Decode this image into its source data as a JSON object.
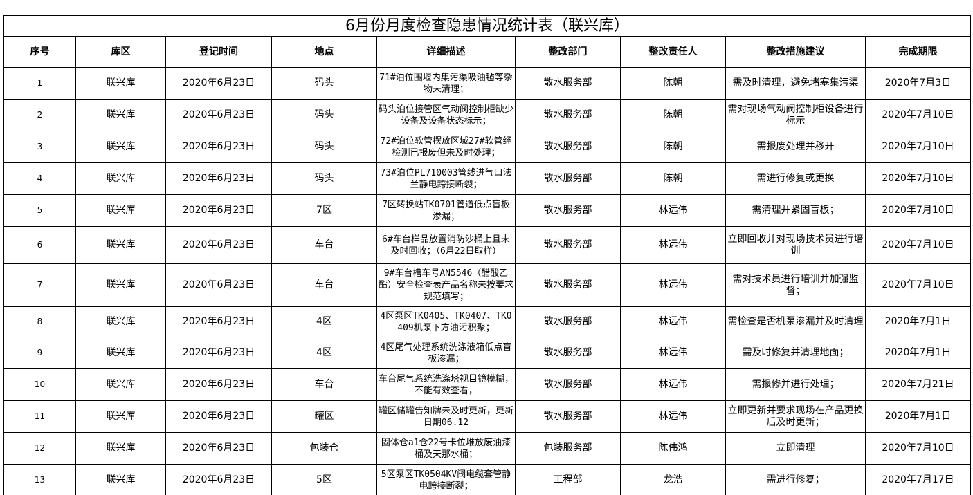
{
  "title": "6月份月度检查隐患情况统计表（联兴库）",
  "table": {
    "headers": [
      "序号",
      "库区",
      "登记时间",
      "地点",
      "详细描述",
      "整改部门",
      "整改责任人",
      "整改措施建议",
      "完成期限"
    ],
    "rows": [
      [
        "1",
        "联兴库",
        "2020年6月23日",
        "码头",
        "71#泊位围堰内集污渠吸油毡等杂物未清理；",
        "散水服务部",
        "陈朝",
        "需及时清理，避免堵塞集污渠",
        "2020年7月3日"
      ],
      [
        "2",
        "联兴库",
        "2020年6月23日",
        "码头",
        "码头泊位接管区气动阀控制柜缺少设备及设备状态标示；",
        "散水服务部",
        "陈朝",
        "需对现场气动阀控制柜设备进行标示",
        "2020年7月10日"
      ],
      [
        "3",
        "联兴库",
        "2020年6月23日",
        "码头",
        "72#泊位软管摆放区域27#软管经检测已报废但未及时处理；",
        "散水服务部",
        "陈朝",
        "需报废处理并移开",
        "2020年7月10日"
      ],
      [
        "4",
        "联兴库",
        "2020年6月23日",
        "码头",
        "73#泊位PL710003管线进气口法兰静电跨接断裂；",
        "散水服务部",
        "陈朝",
        "需进行修复或更换",
        "2020年7月10日"
      ],
      [
        "5",
        "联兴库",
        "2020年6月23日",
        "7区",
        "7区转换站TK0701管道低点盲板渗漏；",
        "散水服务部",
        "林远伟",
        "需清理并紧固盲板；",
        "2020年7月10日"
      ],
      [
        "6",
        "联兴库",
        "2020年6月23日",
        "车台",
        "6#车台样品放置消防沙桶上且未及时回收；（6月22日取样）",
        "散水服务部",
        "林远伟",
        "立即回收并对现场技术员进行培训",
        "2020年7月10日"
      ],
      [
        "7",
        "联兴库",
        "2020年6月23日",
        "车台",
        "9#车台槽车号AN5546（醋酸乙酯）安全检查表产品名称未按要求规范填写；",
        "散水服务部",
        "林远伟",
        "需对技术员进行培训并加强监督；",
        "2020年7月10日"
      ],
      [
        "8",
        "联兴库",
        "2020年6月23日",
        "4区",
        "4区泵区TK0405、TK0407、TK0409机泵下方油污积聚；",
        "散水服务部",
        "林远伟",
        "需检查是否机泵渗漏并及时清理",
        "2020年7月1日"
      ],
      [
        "9",
        "联兴库",
        "2020年6月23日",
        "4区",
        "4区尾气处理系统洗涤液箱低点盲板渗漏；",
        "散水服务部",
        "林远伟",
        "需及时修复并清理地面；",
        "2020年7月1日"
      ],
      [
        "10",
        "联兴库",
        "2020年6月23日",
        "车台",
        "车台尾气系统洗涤塔视目镜模糊，不能有效查看，",
        "散水服务部",
        "林远伟",
        "需报修并进行处理；",
        "2020年7月21日"
      ],
      [
        "11",
        "联兴库",
        "2020年6月23日",
        "罐区",
        "罐区储罐告知牌未及时更新，更新日期06.12",
        "散水服务部",
        "林远伟",
        "立即更新并要求现场在产品更换后及时更新；",
        "2020年7月1日"
      ],
      [
        "12",
        "联兴库",
        "2020年6月23日",
        "包装仓",
        "固体仓a1仓22号卡位堆放废油漆桶及天那水桶；",
        "包装服务部",
        "陈伟鸿",
        "立即清理",
        "2020年7月10日"
      ],
      [
        "13",
        "联兴库",
        "2020年6月23日",
        "5区",
        "5区泵区TK0504KV阀电缆套管静电跨接断裂；",
        "工程部",
        "龙浩",
        "需进行修复；",
        "2020年7月17日"
      ]
    ]
  }
}
